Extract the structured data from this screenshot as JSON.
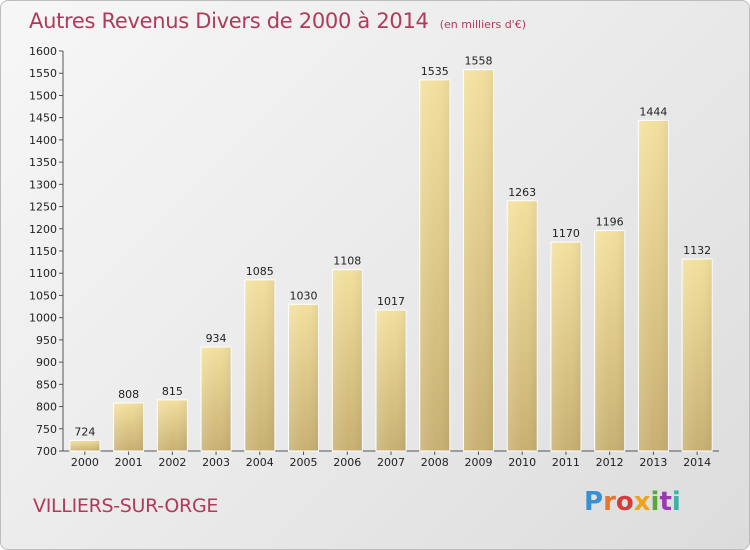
{
  "header": {
    "title": "Autres Revenus Divers de 2000 à 2014",
    "subtitle": "(en milliers d'€)"
  },
  "footer": {
    "city": "VILLIERS-SUR-ORGE",
    "logo_text": "Proxiti"
  },
  "colors": {
    "title": "#b03a5a",
    "bar_light": "#f3e09e",
    "bar_dark": "#c8b072"
  },
  "chart_data": {
    "type": "bar",
    "title": "Autres Revenus Divers de 2000 à 2014",
    "xlabel": "",
    "ylabel": "",
    "ylim": [
      700,
      1600
    ],
    "yticks": [
      700,
      750,
      800,
      850,
      900,
      950,
      1000,
      1050,
      1100,
      1150,
      1200,
      1250,
      1300,
      1350,
      1400,
      1450,
      1500,
      1550,
      1600
    ],
    "grid": false,
    "categories": [
      "2000",
      "2001",
      "2002",
      "2003",
      "2004",
      "2005",
      "2006",
      "2007",
      "2008",
      "2009",
      "2010",
      "2011",
      "2012",
      "2013",
      "2014"
    ],
    "values": [
      724,
      808,
      815,
      934,
      1085,
      1030,
      1108,
      1017,
      1535,
      1558,
      1263,
      1170,
      1196,
      1444,
      1132
    ]
  }
}
